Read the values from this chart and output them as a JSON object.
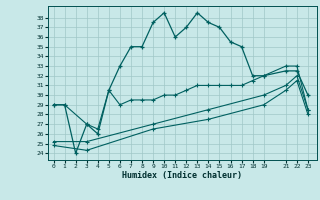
{
  "xlabel": "Humidex (Indice chaleur)",
  "bg_color": "#c8e8e8",
  "grid_color": "#a0c8c8",
  "line_color": "#006060",
  "x_ticks": [
    0,
    1,
    2,
    3,
    4,
    5,
    6,
    7,
    8,
    9,
    10,
    11,
    12,
    13,
    14,
    15,
    16,
    17,
    18,
    19,
    21,
    22,
    23
  ],
  "y_ticks": [
    24,
    25,
    26,
    27,
    28,
    29,
    30,
    31,
    32,
    33,
    34,
    35,
    36,
    37,
    38
  ],
  "ylim": [
    23.3,
    39.2
  ],
  "xlim": [
    -0.5,
    23.8
  ],
  "main_line_x": [
    0,
    1,
    2,
    3,
    4,
    5,
    6,
    7,
    8,
    9,
    10,
    11,
    12,
    13,
    14,
    15,
    16,
    17,
    18,
    19,
    21,
    22,
    23
  ],
  "main_line_y": [
    29,
    29,
    24,
    27,
    26,
    30.5,
    33,
    35,
    35,
    37.5,
    38.5,
    36,
    37,
    38.5,
    37.5,
    37,
    35.5,
    35,
    32,
    32,
    32.5,
    32.5,
    30
  ],
  "line2_x": [
    0,
    1,
    3,
    4,
    5,
    6,
    7,
    8,
    9,
    10,
    11,
    12,
    13,
    14,
    15,
    16,
    17,
    18,
    19,
    21,
    22,
    23
  ],
  "line2_y": [
    29,
    29,
    27,
    26.5,
    30.5,
    29,
    29.5,
    29.5,
    29.5,
    30,
    30,
    30.5,
    31,
    31,
    31,
    31,
    31,
    31.5,
    32,
    33,
    33,
    28.5
  ],
  "line3_x": [
    0,
    3,
    9,
    14,
    19,
    21,
    22,
    23
  ],
  "line3_y": [
    25.2,
    25.2,
    27,
    28.5,
    30,
    31,
    32,
    28.5
  ],
  "line4_x": [
    0,
    3,
    9,
    14,
    19,
    21,
    22,
    23
  ],
  "line4_y": [
    24.8,
    24.3,
    26.5,
    27.5,
    29,
    30.5,
    31.5,
    28
  ]
}
